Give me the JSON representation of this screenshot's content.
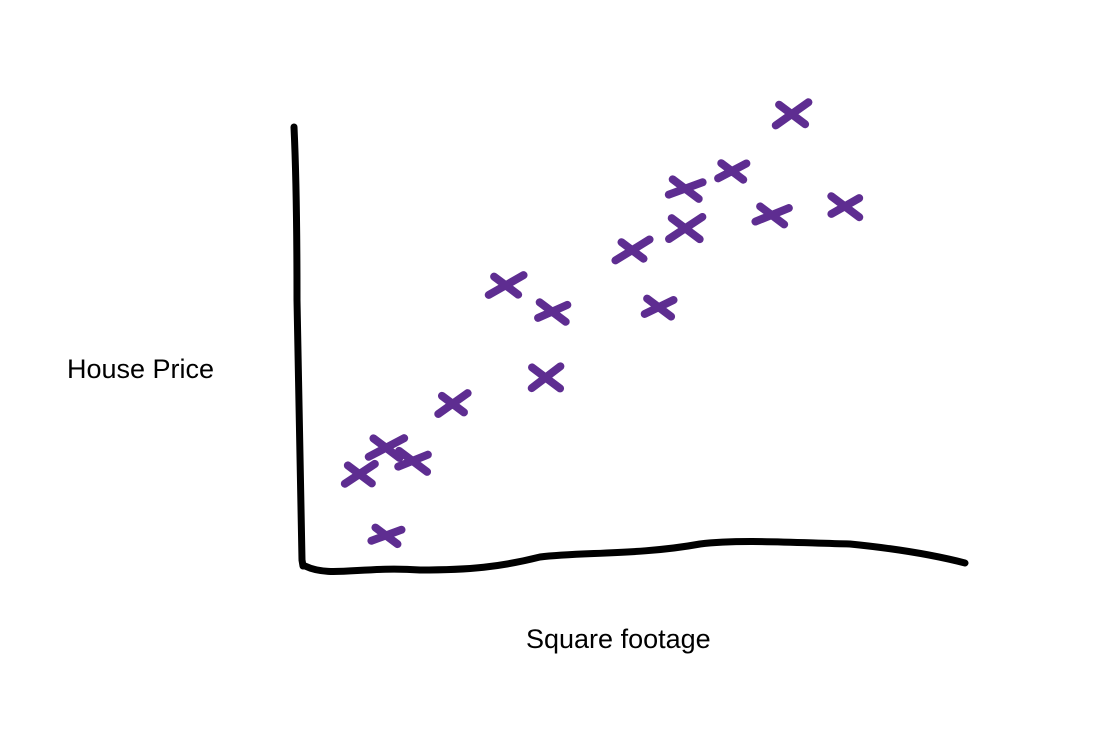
{
  "chart_data": {
    "type": "scatter",
    "title": "",
    "xlabel": "Square footage",
    "ylabel": "House Price",
    "xlim": [
      0,
      100
    ],
    "ylim": [
      0,
      100
    ],
    "grid": false,
    "legend": "none",
    "series": [
      {
        "color": "#5e2d91",
        "marker": "hand-drawn-x",
        "points": [
          {
            "x": 13,
            "y": 7
          },
          {
            "x": 9,
            "y": 21
          },
          {
            "x": 13,
            "y": 27
          },
          {
            "x": 17,
            "y": 24
          },
          {
            "x": 23,
            "y": 37
          },
          {
            "x": 31,
            "y": 64
          },
          {
            "x": 38,
            "y": 58
          },
          {
            "x": 37,
            "y": 43
          },
          {
            "x": 50,
            "y": 72
          },
          {
            "x": 54,
            "y": 59
          },
          {
            "x": 58,
            "y": 86
          },
          {
            "x": 58,
            "y": 77
          },
          {
            "x": 65,
            "y": 90
          },
          {
            "x": 71,
            "y": 80
          },
          {
            "x": 74,
            "y": 103
          },
          {
            "x": 82,
            "y": 82
          }
        ]
      }
    ]
  }
}
